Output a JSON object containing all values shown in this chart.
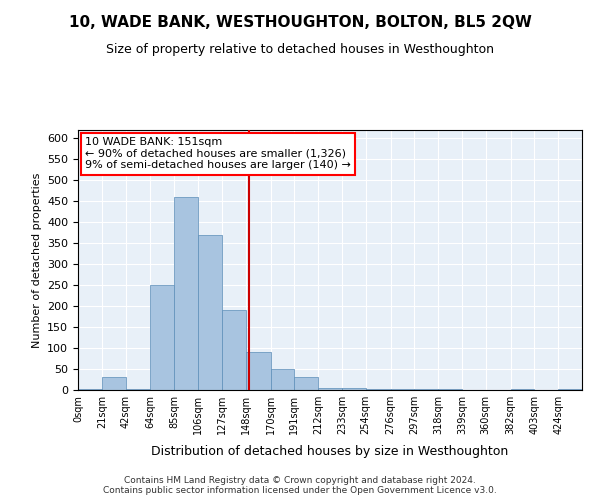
{
  "title": "10, WADE BANK, WESTHOUGHTON, BOLTON, BL5 2QW",
  "subtitle": "Size of property relative to detached houses in Westhoughton",
  "xlabel": "Distribution of detached houses by size in Westhoughton",
  "ylabel": "Number of detached properties",
  "footer_line1": "Contains HM Land Registry data © Crown copyright and database right 2024.",
  "footer_line2": "Contains public sector information licensed under the Open Government Licence v3.0.",
  "annotation_title": "10 WADE BANK: 151sqm",
  "annotation_line1": "← 90% of detached houses are smaller (1,326)",
  "annotation_line2": "9% of semi-detached houses are larger (140) →",
  "property_line_x": 151,
  "bar_color": "#a8c4e0",
  "bar_edge_color": "#5b8db8",
  "property_line_color": "#cc0000",
  "categories": [
    "0sqm",
    "21sqm",
    "42sqm",
    "64sqm",
    "85sqm",
    "106sqm",
    "127sqm",
    "148sqm",
    "170sqm",
    "191sqm",
    "212sqm",
    "233sqm",
    "254sqm",
    "276sqm",
    "297sqm",
    "318sqm",
    "339sqm",
    "360sqm",
    "382sqm",
    "403sqm",
    "424sqm"
  ],
  "bin_edges": [
    0,
    21,
    42,
    64,
    85,
    106,
    127,
    148,
    170,
    191,
    212,
    233,
    254,
    276,
    297,
    318,
    339,
    360,
    382,
    403,
    424,
    445
  ],
  "values": [
    2,
    30,
    2,
    250,
    460,
    370,
    190,
    90,
    50,
    30,
    5,
    5,
    2,
    2,
    2,
    2,
    0,
    0,
    2,
    0,
    2
  ],
  "ylim": [
    0,
    620
  ],
  "yticks": [
    0,
    50,
    100,
    150,
    200,
    250,
    300,
    350,
    400,
    450,
    500,
    550,
    600
  ],
  "background_color": "#e8f0f8",
  "grid_color": "#ffffff"
}
